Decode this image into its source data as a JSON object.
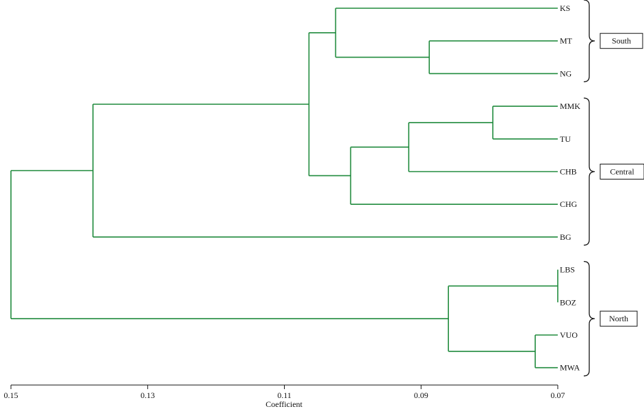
{
  "chart_data": {
    "type": "dendrogram",
    "xlabel": "Coefficient",
    "xlim": [
      0.15,
      0.07
    ],
    "ticks": [
      0.15,
      0.13,
      0.11,
      0.09,
      0.07
    ],
    "tick_labels": [
      "0.15",
      "0.13",
      "0.11",
      "0.09",
      "0.07"
    ],
    "line_color": "#1f8a3c",
    "leaves": [
      "KS",
      "MT",
      "NG",
      "MMK",
      "TU",
      "CHB",
      "CHG",
      "BG",
      "LBS",
      "BOZ",
      "VUO",
      "MWA"
    ],
    "merges": [
      {
        "id": "n1",
        "height": 0.0888,
        "children": [
          "MT",
          "NG"
        ]
      },
      {
        "id": "n2",
        "height": 0.1025,
        "children": [
          "KS",
          "n1"
        ]
      },
      {
        "id": "n3",
        "height": 0.0795,
        "children": [
          "MMK",
          "TU"
        ]
      },
      {
        "id": "n4",
        "height": 0.0918,
        "children": [
          "n3",
          "CHB"
        ]
      },
      {
        "id": "n5",
        "height": 0.1003,
        "children": [
          "n4",
          "CHG"
        ]
      },
      {
        "id": "n6",
        "height": 0.1064,
        "children": [
          "n2",
          "n5"
        ]
      },
      {
        "id": "n7",
        "height": 0.138,
        "children": [
          "n6",
          "BG"
        ]
      },
      {
        "id": "n8",
        "height": 0.07,
        "children": [
          "LBS",
          "BOZ"
        ]
      },
      {
        "id": "n9",
        "height": 0.0733,
        "children": [
          "VUO",
          "MWA"
        ]
      },
      {
        "id": "n10",
        "height": 0.086,
        "children": [
          "n8",
          "n9"
        ]
      },
      {
        "id": "n11",
        "height": 0.15,
        "children": [
          "n7",
          "n10"
        ]
      }
    ],
    "groups": [
      {
        "label": "South",
        "leaves": [
          "KS",
          "MT",
          "NG"
        ]
      },
      {
        "label": "Central",
        "leaves": [
          "MMK",
          "TU",
          "CHB",
          "CHG",
          "BG"
        ]
      },
      {
        "label": "North",
        "leaves": [
          "LBS",
          "BOZ",
          "VUO",
          "MWA"
        ]
      }
    ]
  }
}
